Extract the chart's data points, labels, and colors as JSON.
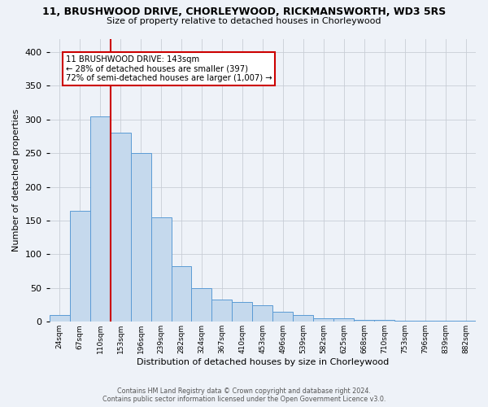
{
  "title_line1": "11, BRUSHWOOD DRIVE, CHORLEYWOOD, RICKMANSWORTH, WD3 5RS",
  "title_line2": "Size of property relative to detached houses in Chorleywood",
  "xlabel": "Distribution of detached houses by size in Chorleywood",
  "ylabel": "Number of detached properties",
  "bar_labels": [
    "24sqm",
    "67sqm",
    "110sqm",
    "153sqm",
    "196sqm",
    "239sqm",
    "282sqm",
    "324sqm",
    "367sqm",
    "410sqm",
    "453sqm",
    "496sqm",
    "539sqm",
    "582sqm",
    "625sqm",
    "668sqm",
    "710sqm",
    "753sqm",
    "796sqm",
    "839sqm",
    "882sqm"
  ],
  "bar_heights": [
    10,
    165,
    305,
    280,
    250,
    155,
    83,
    50,
    33,
    29,
    24,
    15,
    10,
    5,
    5,
    3,
    3,
    2,
    2,
    2,
    2
  ],
  "bar_color": "#c5d9ed",
  "bar_edge_color": "#5b9bd5",
  "property_line_x": 2.5,
  "property_line_color": "#cc0000",
  "annotation_text_line1": "11 BRUSHWOOD DRIVE: 143sqm",
  "annotation_text_line2": "← 28% of detached houses are smaller (397)",
  "annotation_text_line3": "72% of semi-detached houses are larger (1,007) →",
  "annotation_box_color": "#ffffff",
  "annotation_box_edge": "#cc0000",
  "ylim": [
    0,
    420
  ],
  "yticks": [
    0,
    50,
    100,
    150,
    200,
    250,
    300,
    350,
    400
  ],
  "footnote1": "Contains HM Land Registry data © Crown copyright and database right 2024.",
  "footnote2": "Contains public sector information licensed under the Open Government Licence v3.0.",
  "background_color": "#eef2f8"
}
